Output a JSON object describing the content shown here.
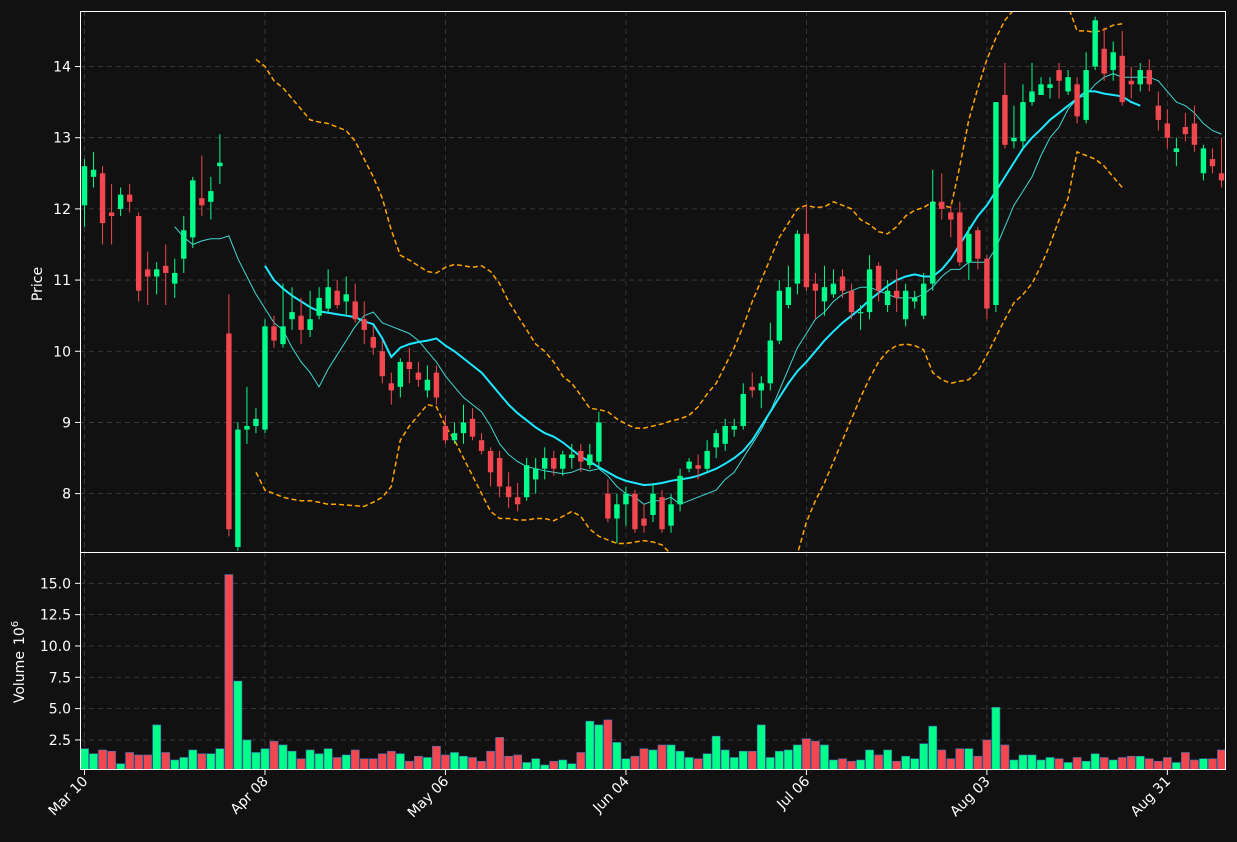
{
  "chart_data": {
    "type": "candlestick",
    "colors": {
      "background": "#111111",
      "up": "#00ff8a",
      "down": "#f2474f",
      "ma_fast": "#3fd8d0",
      "ma_slow": "#1ee8ff",
      "bollinger": "#ffa500",
      "grid": "#555555",
      "text": "#ffffff"
    },
    "price_panel": {
      "ylabel": "Price",
      "ylim": [
        7.18,
        14.78
      ],
      "yticks": [
        8,
        9,
        10,
        11,
        12,
        13,
        14
      ]
    },
    "volume_panel": {
      "ylabel": "Volume",
      "ylabel_exponent": "10",
      "ylabel_exponent_power": "6",
      "ylim": [
        0.1,
        17.5
      ],
      "yticks": [
        "2.5",
        "5.0",
        "7.5",
        "10.0",
        "12.5",
        "15.0"
      ],
      "ytick_values": [
        2.5,
        5.0,
        7.5,
        10.0,
        12.5,
        15.0
      ]
    },
    "xticks": [
      {
        "index": 0,
        "label": "Mar 10"
      },
      {
        "index": 20,
        "label": "Apr 08"
      },
      {
        "index": 40,
        "label": "May 06"
      },
      {
        "index": 60,
        "label": "Jun 04"
      },
      {
        "index": 80,
        "label": "Jul 06"
      },
      {
        "index": 100,
        "label": "Aug 03"
      },
      {
        "index": 120,
        "label": "Aug 31"
      }
    ],
    "candles": [
      [
        12.05,
        12.6,
        12.7,
        11.75,
        1.8
      ],
      [
        12.45,
        12.55,
        12.8,
        12.3,
        1.4
      ],
      [
        12.5,
        11.8,
        12.6,
        11.5,
        1.7
      ],
      [
        11.95,
        11.9,
        12.35,
        11.5,
        1.6
      ],
      [
        12.0,
        12.2,
        12.3,
        11.9,
        0.6
      ],
      [
        12.2,
        12.1,
        12.35,
        11.95,
        1.5
      ],
      [
        11.9,
        10.85,
        11.95,
        10.7,
        1.3
      ],
      [
        11.15,
        11.05,
        11.4,
        10.65,
        1.3
      ],
      [
        11.05,
        11.15,
        11.25,
        10.8,
        3.7
      ],
      [
        11.2,
        11.1,
        11.5,
        10.65,
        1.5
      ],
      [
        10.95,
        11.1,
        11.3,
        10.75,
        0.9
      ],
      [
        11.3,
        11.7,
        11.9,
        11.1,
        1.1
      ],
      [
        11.6,
        12.4,
        12.45,
        11.45,
        1.7
      ],
      [
        12.15,
        12.05,
        12.75,
        11.9,
        1.4
      ],
      [
        12.1,
        12.25,
        12.45,
        11.85,
        1.4
      ],
      [
        12.6,
        12.65,
        13.05,
        12.35,
        1.8
      ],
      [
        10.25,
        7.5,
        10.8,
        7.4,
        15.7
      ],
      [
        7.25,
        8.9,
        9.0,
        7.2,
        7.2
      ],
      [
        8.9,
        8.95,
        9.5,
        8.7,
        2.5
      ],
      [
        8.95,
        9.05,
        9.2,
        8.85,
        1.5
      ],
      [
        8.9,
        10.35,
        10.45,
        8.85,
        1.8
      ],
      [
        10.35,
        10.15,
        10.5,
        10.05,
        2.4
      ],
      [
        10.1,
        10.35,
        10.95,
        10.05,
        2.1
      ],
      [
        10.45,
        10.55,
        10.9,
        10.3,
        1.6
      ],
      [
        10.5,
        10.3,
        10.75,
        10.1,
        1.0
      ],
      [
        10.3,
        10.45,
        10.85,
        10.2,
        1.7
      ],
      [
        10.5,
        10.75,
        10.9,
        10.45,
        1.4
      ],
      [
        10.6,
        10.9,
        11.15,
        10.55,
        1.8
      ],
      [
        10.85,
        10.65,
        11.0,
        10.6,
        1.1
      ],
      [
        10.7,
        10.8,
        11.05,
        10.5,
        1.3
      ],
      [
        10.7,
        10.45,
        10.95,
        10.4,
        1.7
      ],
      [
        10.45,
        10.3,
        10.7,
        10.1,
        1.0
      ],
      [
        10.2,
        10.05,
        10.35,
        9.95,
        1.0
      ],
      [
        10.0,
        9.65,
        10.15,
        9.55,
        1.4
      ],
      [
        9.55,
        9.45,
        9.7,
        9.25,
        1.6
      ],
      [
        9.5,
        9.85,
        9.9,
        9.35,
        1.4
      ],
      [
        9.85,
        9.75,
        10.05,
        9.55,
        0.8
      ],
      [
        9.7,
        9.6,
        9.85,
        9.5,
        1.2
      ],
      [
        9.45,
        9.6,
        9.8,
        9.35,
        1.1
      ],
      [
        9.7,
        9.35,
        9.8,
        9.25,
        2.0
      ],
      [
        8.95,
        8.75,
        9.1,
        8.7,
        1.3
      ],
      [
        8.75,
        8.85,
        9.0,
        8.7,
        1.5
      ],
      [
        8.85,
        9.0,
        9.25,
        8.7,
        1.2
      ],
      [
        9.05,
        8.8,
        9.2,
        8.75,
        1.1
      ],
      [
        8.75,
        8.6,
        8.85,
        8.55,
        0.8
      ],
      [
        8.6,
        8.3,
        8.65,
        8.1,
        1.6
      ],
      [
        8.5,
        8.1,
        8.6,
        7.95,
        2.7
      ],
      [
        8.1,
        7.95,
        8.3,
        7.8,
        1.2
      ],
      [
        7.95,
        7.85,
        8.15,
        7.75,
        1.3
      ],
      [
        7.95,
        8.4,
        8.5,
        7.9,
        0.7
      ],
      [
        8.2,
        8.35,
        8.5,
        8.0,
        1.0
      ],
      [
        8.35,
        8.5,
        8.65,
        8.2,
        0.5
      ],
      [
        8.5,
        8.35,
        8.6,
        8.25,
        0.8
      ],
      [
        8.35,
        8.55,
        8.6,
        8.25,
        0.9
      ],
      [
        8.5,
        8.55,
        8.7,
        8.35,
        0.6
      ],
      [
        8.6,
        8.45,
        8.7,
        8.3,
        1.5
      ],
      [
        8.4,
        8.55,
        8.7,
        8.35,
        4.0
      ],
      [
        8.45,
        9.0,
        9.15,
        8.35,
        3.7
      ],
      [
        8.0,
        7.65,
        8.2,
        7.6,
        4.1
      ],
      [
        7.65,
        7.85,
        8.0,
        7.3,
        2.3
      ],
      [
        7.85,
        8.0,
        8.1,
        7.55,
        1.0
      ],
      [
        8.0,
        7.5,
        8.05,
        7.45,
        1.2
      ],
      [
        7.65,
        7.55,
        7.85,
        7.45,
        1.8
      ],
      [
        7.7,
        8.0,
        8.15,
        7.6,
        1.7
      ],
      [
        7.95,
        7.5,
        8.05,
        7.45,
        2.1
      ],
      [
        7.55,
        7.85,
        8.0,
        7.45,
        2.1
      ],
      [
        7.85,
        8.25,
        8.35,
        7.75,
        1.6
      ],
      [
        8.35,
        8.45,
        8.5,
        8.3,
        1.1
      ],
      [
        8.4,
        8.35,
        8.55,
        8.2,
        1.0
      ],
      [
        8.35,
        8.6,
        8.75,
        8.3,
        1.4
      ],
      [
        8.65,
        8.85,
        8.9,
        8.5,
        2.8
      ],
      [
        8.7,
        8.95,
        9.05,
        8.6,
        1.7
      ],
      [
        8.9,
        8.95,
        9.05,
        8.8,
        1.1
      ],
      [
        8.95,
        9.4,
        9.55,
        8.9,
        1.6
      ],
      [
        9.5,
        9.45,
        9.7,
        9.35,
        1.6
      ],
      [
        9.45,
        9.55,
        9.65,
        9.2,
        3.7
      ],
      [
        9.55,
        10.15,
        10.4,
        9.45,
        1.1
      ],
      [
        10.15,
        10.85,
        11.0,
        10.1,
        1.6
      ],
      [
        10.65,
        10.9,
        11.2,
        10.6,
        1.7
      ],
      [
        10.95,
        11.65,
        11.7,
        10.8,
        2.1
      ],
      [
        11.65,
        10.9,
        12.05,
        10.85,
        2.6
      ],
      [
        10.95,
        10.85,
        11.1,
        10.45,
        2.4
      ],
      [
        10.7,
        10.9,
        11.2,
        10.5,
        2.1
      ],
      [
        10.8,
        10.95,
        11.15,
        10.75,
        0.9
      ],
      [
        11.05,
        10.85,
        11.15,
        10.75,
        1.0
      ],
      [
        10.85,
        10.55,
        10.95,
        10.45,
        0.8
      ],
      [
        10.55,
        10.55,
        10.65,
        10.3,
        0.9
      ],
      [
        10.55,
        11.15,
        11.35,
        10.45,
        1.7
      ],
      [
        11.2,
        10.85,
        11.25,
        10.7,
        1.3
      ],
      [
        10.65,
        10.85,
        11.0,
        10.55,
        1.7
      ],
      [
        10.85,
        10.75,
        11.15,
        10.55,
        0.8
      ],
      [
        10.45,
        10.85,
        10.95,
        10.35,
        1.2
      ],
      [
        10.7,
        10.75,
        10.85,
        10.6,
        1.0
      ],
      [
        10.5,
        10.95,
        11.1,
        10.45,
        2.2
      ],
      [
        10.95,
        12.1,
        12.55,
        10.85,
        3.6
      ],
      [
        12.1,
        12.0,
        12.5,
        11.85,
        1.7
      ],
      [
        11.95,
        11.85,
        12.05,
        11.6,
        1.0
      ],
      [
        11.95,
        11.25,
        12.1,
        11.2,
        1.8
      ],
      [
        11.25,
        11.65,
        11.75,
        11.0,
        1.8
      ],
      [
        11.7,
        11.3,
        11.75,
        11.15,
        1.2
      ],
      [
        11.3,
        10.6,
        11.35,
        10.45,
        2.5
      ],
      [
        10.65,
        13.5,
        13.5,
        10.55,
        5.1
      ],
      [
        13.6,
        12.9,
        14.05,
        12.85,
        2.1
      ],
      [
        12.95,
        13.0,
        13.45,
        12.85,
        0.9
      ],
      [
        12.95,
        13.5,
        13.75,
        12.85,
        1.3
      ],
      [
        13.5,
        13.65,
        14.05,
        13.45,
        1.3
      ],
      [
        13.6,
        13.75,
        13.85,
        13.6,
        0.9
      ],
      [
        13.7,
        13.75,
        13.85,
        13.55,
        1.1
      ],
      [
        13.95,
        13.8,
        14.05,
        13.55,
        1.0
      ],
      [
        13.65,
        13.85,
        13.95,
        13.6,
        0.7
      ],
      [
        13.75,
        13.3,
        13.85,
        13.2,
        1.1
      ],
      [
        13.25,
        13.95,
        14.2,
        13.2,
        0.8
      ],
      [
        14.0,
        14.65,
        14.7,
        13.95,
        1.4
      ],
      [
        14.25,
        13.9,
        14.55,
        13.8,
        1.1
      ],
      [
        13.95,
        14.2,
        14.35,
        13.8,
        0.9
      ],
      [
        14.15,
        13.5,
        14.5,
        13.45,
        1.1
      ],
      [
        13.8,
        13.75,
        14.0,
        13.55,
        1.2
      ],
      [
        13.75,
        13.95,
        14.05,
        13.65,
        1.2
      ],
      [
        13.95,
        13.75,
        14.1,
        13.65,
        1.0
      ],
      [
        13.45,
        13.25,
        13.65,
        13.1,
        0.8
      ],
      [
        13.2,
        13.0,
        13.4,
        12.85,
        1.1
      ],
      [
        12.8,
        12.85,
        13.0,
        12.6,
        0.7
      ],
      [
        13.15,
        13.05,
        13.35,
        12.95,
        1.5
      ],
      [
        13.2,
        12.9,
        13.45,
        12.8,
        0.9
      ],
      [
        12.5,
        12.85,
        12.9,
        12.4,
        1.0
      ],
      [
        12.7,
        12.6,
        12.85,
        12.5,
        1.0
      ],
      [
        12.5,
        12.4,
        13.0,
        12.3,
        1.7
      ]
    ],
    "ma_fast": [
      null,
      null,
      null,
      null,
      null,
      null,
      null,
      null,
      null,
      null,
      11.75,
      11.6,
      11.5,
      11.55,
      11.58,
      11.58,
      11.62,
      11.3,
      11.05,
      10.8,
      10.6,
      10.4,
      10.3,
      10.05,
      9.85,
      9.7,
      9.5,
      9.75,
      9.95,
      10.15,
      10.35,
      10.5,
      10.55,
      10.4,
      10.35,
      10.3,
      10.25,
      10.15,
      10.0,
      9.85,
      9.65,
      9.5,
      9.35,
      9.25,
      9.15,
      8.95,
      8.7,
      8.55,
      8.45,
      8.38,
      8.35,
      8.32,
      8.3,
      8.28,
      8.3,
      8.35,
      8.32,
      8.35,
      8.25,
      8.1,
      8.0,
      7.95,
      7.85,
      7.9,
      7.9,
      7.95,
      7.85,
      7.9,
      7.95,
      8.0,
      8.05,
      8.2,
      8.3,
      8.5,
      8.7,
      8.9,
      9.15,
      9.45,
      9.75,
      10.05,
      10.25,
      10.45,
      10.55,
      10.7,
      10.8,
      10.85,
      10.9,
      10.9,
      10.85,
      10.8,
      10.75,
      10.75,
      10.75,
      10.8,
      10.9,
      11.05,
      11.15,
      11.15,
      11.25,
      11.25,
      11.25,
      11.45,
      11.75,
      12.05,
      12.25,
      12.45,
      12.75,
      13.0,
      13.15,
      13.4,
      13.55,
      13.6,
      13.75,
      13.85,
      13.9,
      13.85,
      13.85,
      13.85,
      13.85,
      13.8,
      13.65,
      13.5,
      13.45,
      13.35,
      13.2,
      13.1,
      13.05
    ],
    "ma_slow": [
      null,
      null,
      null,
      null,
      null,
      null,
      null,
      null,
      null,
      null,
      null,
      null,
      null,
      null,
      null,
      null,
      null,
      null,
      null,
      null,
      11.2,
      11.0,
      10.88,
      10.78,
      10.7,
      10.62,
      10.56,
      10.54,
      10.52,
      10.5,
      10.48,
      10.42,
      10.38,
      10.18,
      9.92,
      10.05,
      10.1,
      10.13,
      10.15,
      10.18,
      10.08,
      10.0,
      9.9,
      9.8,
      9.7,
      9.55,
      9.4,
      9.25,
      9.13,
      9.03,
      8.93,
      8.85,
      8.8,
      8.72,
      8.62,
      8.52,
      8.45,
      8.37,
      8.3,
      8.23,
      8.18,
      8.15,
      8.12,
      8.13,
      8.15,
      8.18,
      8.2,
      8.22,
      8.25,
      8.3,
      8.35,
      8.42,
      8.5,
      8.6,
      8.75,
      8.95,
      9.15,
      9.35,
      9.55,
      9.72,
      9.85,
      10.0,
      10.15,
      10.28,
      10.4,
      10.5,
      10.6,
      10.72,
      10.82,
      10.92,
      11.0,
      11.05,
      11.08,
      11.05,
      11.05,
      11.15,
      11.3,
      11.5,
      11.7,
      11.9,
      12.05,
      12.25,
      12.45,
      12.65,
      12.85,
      13.0,
      13.12,
      13.25,
      13.35,
      13.45,
      13.55,
      13.65,
      13.65,
      13.62,
      13.6,
      13.58,
      13.5,
      13.45
    ],
    "boll_upper": [
      null,
      null,
      null,
      null,
      null,
      null,
      null,
      null,
      null,
      null,
      null,
      null,
      null,
      null,
      null,
      null,
      null,
      null,
      null,
      14.1,
      14.0,
      13.8,
      13.7,
      13.55,
      13.4,
      13.25,
      13.22,
      13.2,
      13.15,
      13.1,
      12.95,
      12.7,
      12.45,
      12.15,
      11.7,
      11.35,
      11.28,
      11.2,
      11.12,
      11.1,
      11.18,
      11.22,
      11.2,
      11.18,
      11.2,
      11.12,
      10.95,
      10.7,
      10.5,
      10.3,
      10.1,
      10.0,
      9.85,
      9.65,
      9.55,
      9.38,
      9.2,
      9.18,
      9.15,
      9.05,
      8.98,
      8.92,
      8.92,
      8.95,
      8.98,
      9.02,
      9.05,
      9.1,
      9.22,
      9.4,
      9.55,
      9.8,
      10.05,
      10.35,
      10.7,
      11.0,
      11.3,
      11.6,
      11.8,
      12.0,
      12.05,
      12.02,
      12.03,
      12.1,
      12.05,
      12.0,
      11.85,
      11.78,
      11.68,
      11.65,
      11.75,
      11.9,
      11.98,
      12.02,
      12.1,
      12.05,
      12.02,
      12.6,
      13.25,
      13.7,
      14.1,
      14.4,
      14.65,
      14.8,
      14.9,
      15.0,
      15.0,
      14.95,
      14.9,
      14.85,
      14.5,
      14.5,
      14.48,
      14.52,
      14.58,
      14.6
    ],
    "boll_lower": [
      null,
      null,
      null,
      null,
      null,
      null,
      null,
      null,
      null,
      null,
      null,
      null,
      null,
      null,
      null,
      null,
      null,
      null,
      null,
      8.3,
      8.05,
      8.0,
      7.95,
      7.92,
      7.9,
      7.9,
      7.88,
      7.85,
      7.85,
      7.84,
      7.83,
      7.82,
      7.88,
      7.95,
      8.1,
      8.75,
      8.95,
      9.1,
      9.25,
      9.22,
      8.95,
      8.75,
      8.5,
      8.25,
      8.0,
      7.75,
      7.65,
      7.65,
      7.63,
      7.63,
      7.65,
      7.65,
      7.62,
      7.68,
      7.75,
      7.68,
      7.5,
      7.4,
      7.35,
      7.3,
      7.3,
      7.32,
      7.34,
      7.32,
      7.28,
      7.15,
      7.05,
      6.95,
      6.85,
      6.75,
      6.7,
      6.65,
      6.6,
      6.55,
      6.5,
      6.45,
      6.45,
      6.55,
      6.8,
      7.15,
      7.6,
      7.9,
      8.15,
      8.45,
      8.75,
      9.05,
      9.35,
      9.62,
      9.85,
      10.0,
      10.08,
      10.1,
      10.08,
      10.02,
      9.7,
      9.6,
      9.55,
      9.58,
      9.6,
      9.72,
      9.95,
      10.2,
      10.45,
      10.68,
      10.8,
      10.95,
      11.2,
      11.5,
      11.85,
      12.15,
      12.8,
      12.75,
      12.7,
      12.6,
      12.45,
      12.3
    ]
  }
}
